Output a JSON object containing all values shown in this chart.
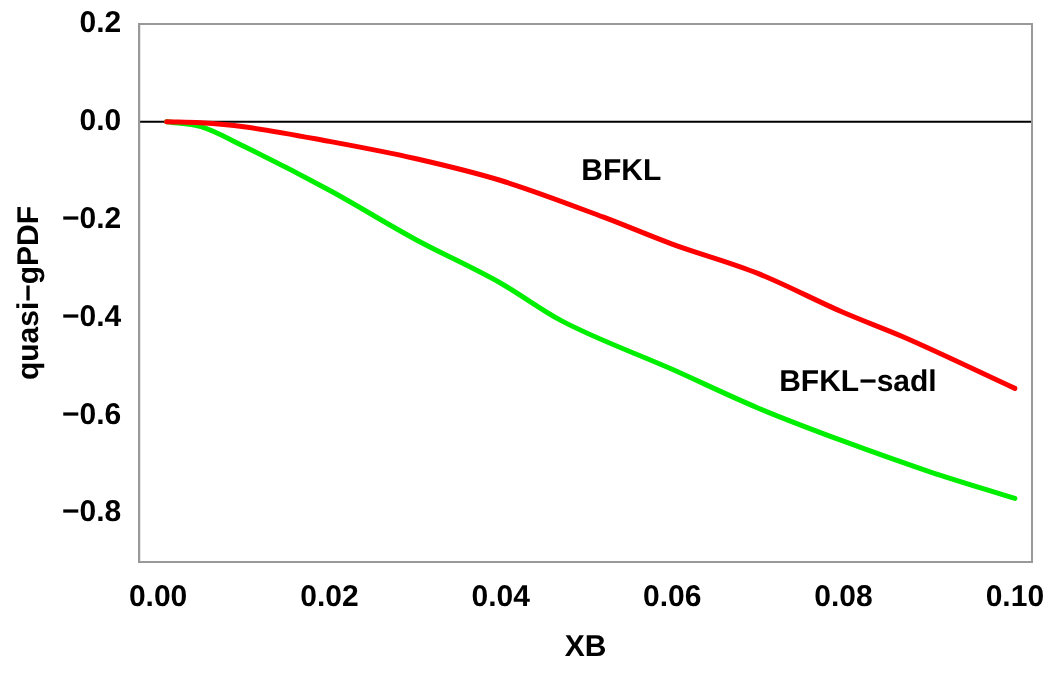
{
  "chart_data": {
    "type": "line",
    "xlabel": "XB",
    "ylabel": "quasi−gPDF",
    "xlim": [
      -0.0022,
      0.102
    ],
    "ylim": [
      -0.9,
      0.2
    ],
    "xticks": [
      {
        "value": 0,
        "label": "0.00"
      },
      {
        "value": 0.02,
        "label": "0.02"
      },
      {
        "value": 0.04,
        "label": "0.04"
      },
      {
        "value": 0.06,
        "label": "0.06"
      },
      {
        "value": 0.08,
        "label": "0.08"
      },
      {
        "value": 0.1,
        "label": "0.10"
      }
    ],
    "yticks": [
      {
        "value": 0.2,
        "label": "0.2"
      },
      {
        "value": 0,
        "label": "0.0"
      },
      {
        "value": -0.2,
        "label": "−0.2"
      },
      {
        "value": -0.4,
        "label": "−0.4"
      },
      {
        "value": -0.6,
        "label": "−0.6"
      },
      {
        "value": -0.8,
        "label": "−0.8"
      }
    ],
    "grid": false,
    "legend": false,
    "marker": "none",
    "line_style": "solid",
    "ref_lines": [
      {
        "axis": "y",
        "value": 0,
        "color": "#000000"
      }
    ],
    "series": [
      {
        "name": "BFKL",
        "color": "#ff0000",
        "x": [
          0.001,
          0.005,
          0.01,
          0.02,
          0.03,
          0.04,
          0.052,
          0.06,
          0.07,
          0.08,
          0.087,
          0.1
        ],
        "values": [
          0,
          -0.002,
          -0.01,
          -0.04,
          -0.075,
          -0.12,
          -0.195,
          -0.25,
          -0.31,
          -0.39,
          -0.44,
          -0.545
        ]
      },
      {
        "name": "BFKL−sadl",
        "color": "#00ee00",
        "x": [
          0.001,
          0.005,
          0.01,
          0.02,
          0.03,
          0.04,
          0.047,
          0.06,
          0.07,
          0.08,
          0.09,
          0.1
        ],
        "values": [
          0,
          -0.01,
          -0.05,
          -0.14,
          -0.24,
          -0.33,
          -0.406,
          -0.506,
          -0.585,
          -0.653,
          -0.715,
          -0.77
        ]
      }
    ]
  }
}
